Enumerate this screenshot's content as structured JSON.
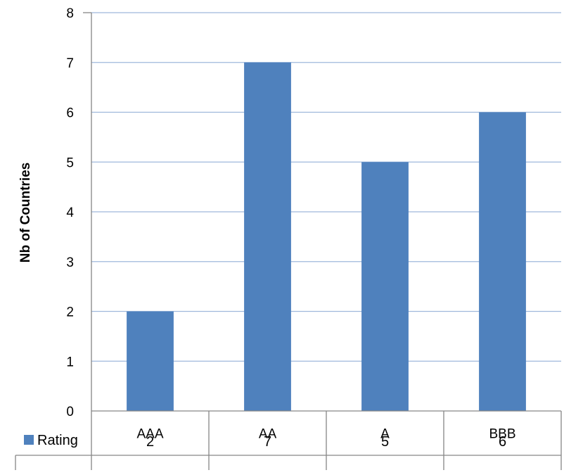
{
  "chart_data": {
    "type": "bar",
    "categories": [
      "AAA",
      "AA",
      "A",
      "BBB"
    ],
    "series": [
      {
        "name": "Rating",
        "values": [
          2,
          7,
          5,
          6
        ]
      }
    ],
    "title": "",
    "xlabel": "",
    "ylabel": "Nb of Countries",
    "ylim": [
      0,
      8
    ],
    "yticks": [
      "0",
      "1",
      "2",
      "3",
      "4",
      "5",
      "6",
      "7",
      "8"
    ],
    "data_table": true,
    "grid": true,
    "colors": {
      "bar": "#4f81bd",
      "grid": "#9fb8dc",
      "axis": "#868686"
    }
  }
}
